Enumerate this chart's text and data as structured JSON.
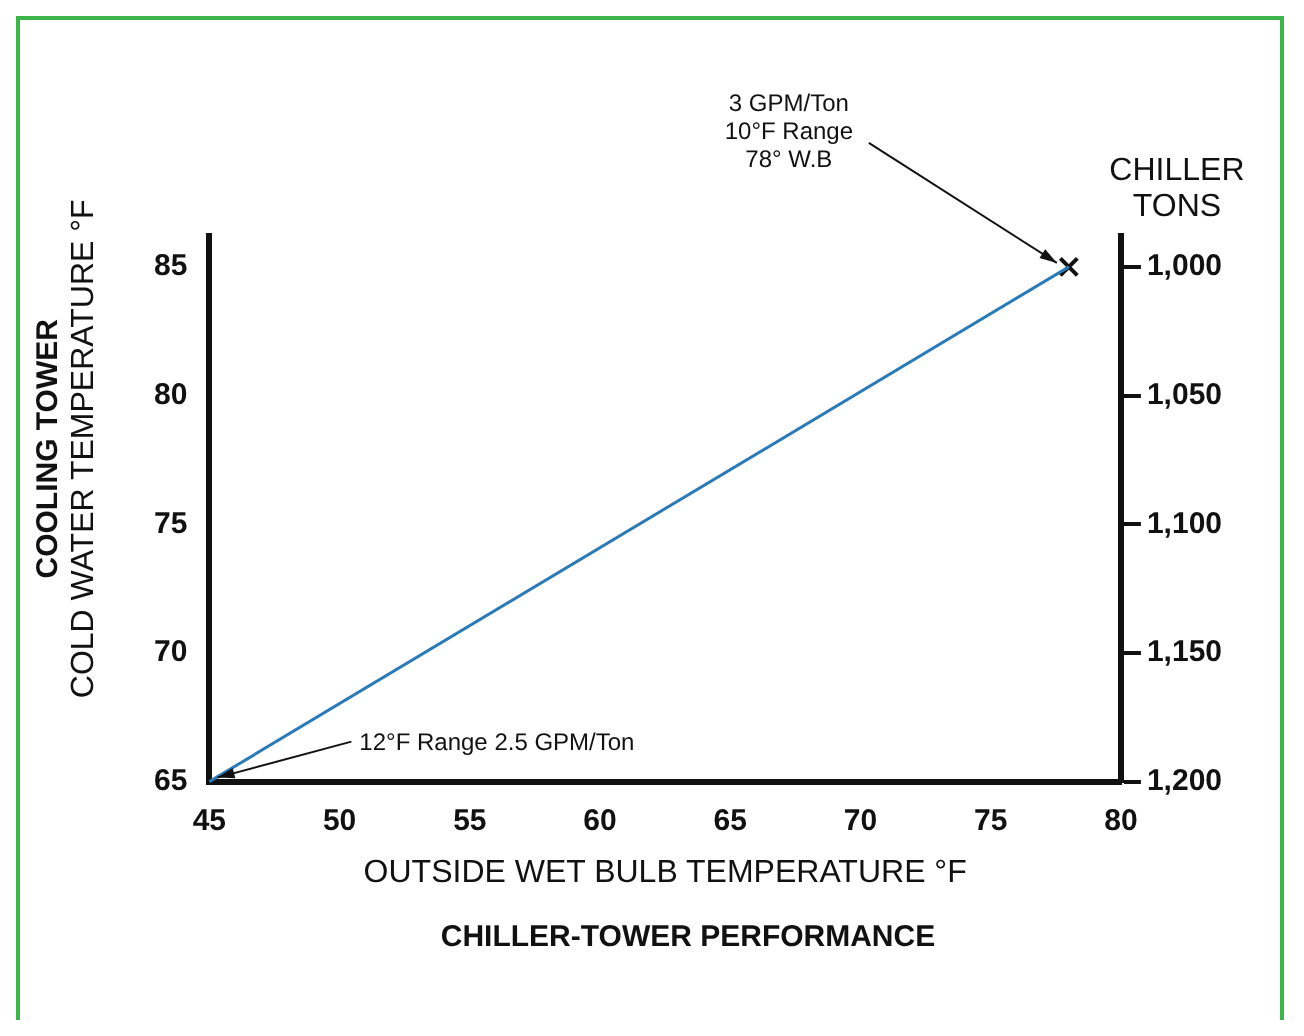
{
  "chart_data": {
    "type": "line",
    "title": "CHILLER-TOWER PERFORMANCE",
    "xlabel": "OUTSIDE WET BULB TEMPERATURE °F",
    "ylabel": "COOLING TOWER\nCOLD WATER TEMPERATURE °F",
    "y2label": "CHILLER\nTONS",
    "series": [
      {
        "color": "#2a7ab8",
        "values": [
          65,
          85
        ],
        "marker": "none",
        "line_style": "solid"
      },
      {
        "type": "scatter",
        "color": "#111111",
        "values": [
          null,
          85
        ],
        "marker": "cross"
      }
    ],
    "x": [
      45,
      78
    ],
    "xlim": [
      45,
      80
    ],
    "xticks": [
      45,
      50,
      55,
      60,
      65,
      70,
      75,
      80
    ],
    "ylim": [
      65,
      86.2
    ],
    "yticks": [
      65,
      70,
      75,
      80,
      85
    ],
    "y2lim": [
      1200,
      988
    ],
    "y2ticks": [
      {
        "value": 1000,
        "label": "1,000"
      },
      {
        "value": 1050,
        "label": "1,050"
      },
      {
        "value": 1100,
        "label": "1,100"
      },
      {
        "value": 1150,
        "label": "1,150"
      },
      {
        "value": 1200,
        "label": "1,200"
      }
    ],
    "annotations": [
      {
        "text": "3 GPM/Ton\n10°F Range\n78° W.B",
        "x": 78,
        "y": 85
      },
      {
        "text": "12°F Range 2.5 GPM/Ton",
        "x": 45,
        "y": 65
      }
    ],
    "grid": false,
    "legend": false
  }
}
